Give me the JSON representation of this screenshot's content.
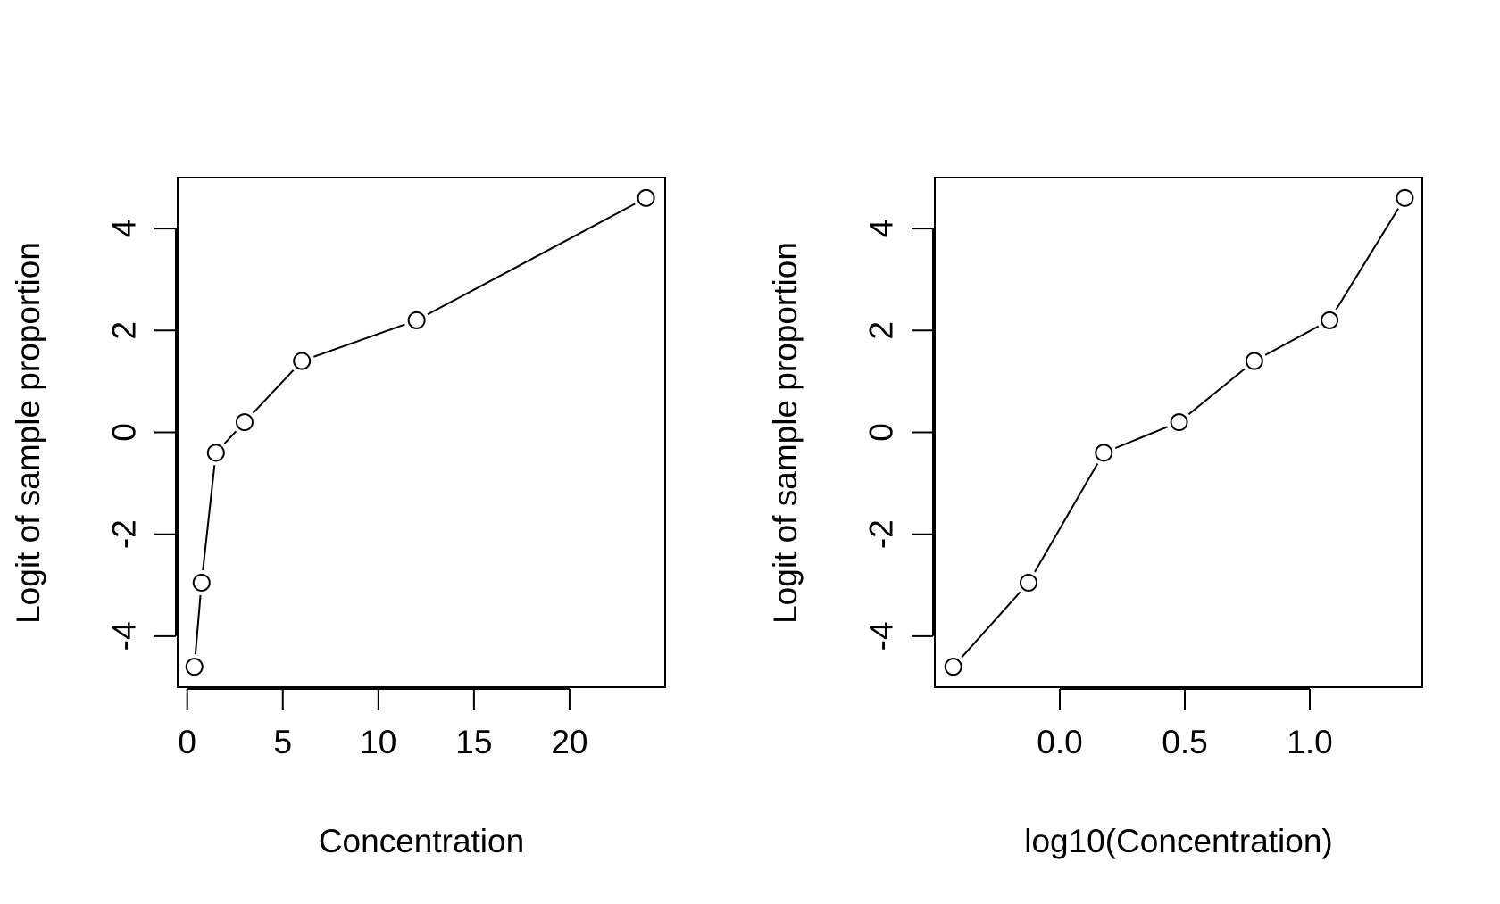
{
  "chart_data": [
    {
      "type": "line",
      "markers": "open-circle",
      "xlabel": "Concentration",
      "ylabel": "Logit of sample proportion",
      "xlim": [
        -0.5,
        25
      ],
      "ylim": [
        -5,
        5
      ],
      "xticks": [
        0,
        5,
        10,
        15,
        20
      ],
      "xtick_labels": [
        "0",
        "5",
        "10",
        "15",
        "20"
      ],
      "yticks": [
        -4,
        -2,
        0,
        2,
        4
      ],
      "ytick_labels": [
        "-4",
        "-2",
        "0",
        "2",
        "4"
      ],
      "grid": false,
      "x": [
        0.375,
        0.75,
        1.5,
        3,
        6,
        12,
        24
      ],
      "y": [
        -4.6,
        -2.95,
        -0.4,
        0.2,
        1.4,
        2.2,
        4.6
      ]
    },
    {
      "type": "line",
      "markers": "open-circle",
      "xlabel": "log10(Concentration)",
      "ylabel": "Logit of sample proportion",
      "xlim": [
        -0.5,
        1.45
      ],
      "ylim": [
        -5,
        5
      ],
      "xticks": [
        0.0,
        0.5,
        1.0
      ],
      "xtick_labels": [
        "0.0",
        "0.5",
        "1.0"
      ],
      "yticks": [
        -4,
        -2,
        0,
        2,
        4
      ],
      "ytick_labels": [
        "-4",
        "-2",
        "0",
        "2",
        "4"
      ],
      "grid": false,
      "x": [
        -0.426,
        -0.125,
        0.176,
        0.477,
        0.778,
        1.079,
        1.38
      ],
      "y": [
        -4.6,
        -2.95,
        -0.4,
        0.2,
        1.4,
        2.2,
        4.6
      ]
    }
  ]
}
